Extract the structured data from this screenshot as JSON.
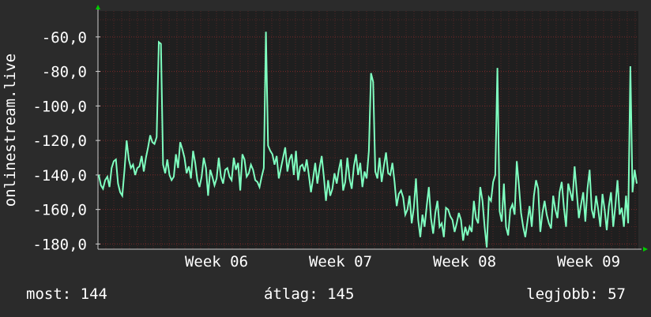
{
  "colors": {
    "background": "#2b2b2b",
    "plot_background": "#1f1f1f",
    "grid": "#7a2a2a",
    "line": "#7fffc0",
    "text": "#ffffff",
    "arrow": "#00cc00"
  },
  "stats": {
    "current": "most: 144",
    "average": "átlag: 145",
    "best": "legjobb: 57"
  },
  "chart_data": {
    "type": "line",
    "title": "",
    "xlabel": "",
    "ylabel": "onlinestream.live",
    "y_ticks": [
      "-60,0",
      "-80,0",
      "-100,0",
      "-120,0",
      "-140,0",
      "-160,0",
      "-180,0"
    ],
    "x_ticks": [
      "Week 06",
      "Week 07",
      "Week 08",
      "Week 09"
    ],
    "ylim": [
      -183,
      -45
    ],
    "grid": true,
    "series": [
      {
        "values": [
          -140,
          -146,
          -148,
          -143,
          -141,
          -147,
          -136,
          -132,
          -131,
          -145,
          -150,
          -152,
          -137,
          -120,
          -131,
          -136,
          -134,
          -140,
          -136,
          -135,
          -129,
          -138,
          -130,
          -124,
          -117,
          -121,
          -122,
          -118,
          -63,
          -64,
          -134,
          -139,
          -131,
          -140,
          -143,
          -141,
          -128,
          -136,
          -121,
          -125,
          -130,
          -139,
          -135,
          -142,
          -126,
          -133,
          -143,
          -147,
          -141,
          -130,
          -136,
          -152,
          -137,
          -141,
          -146,
          -142,
          -130,
          -141,
          -145,
          -137,
          -136,
          -141,
          -143,
          -130,
          -137,
          -133,
          -149,
          -128,
          -131,
          -141,
          -139,
          -134,
          -137,
          -143,
          -144,
          -147,
          -141,
          -136,
          -57,
          -123,
          -126,
          -128,
          -134,
          -129,
          -142,
          -136,
          -130,
          -124,
          -138,
          -131,
          -128,
          -140,
          -126,
          -143,
          -135,
          -134,
          -138,
          -131,
          -140,
          -150,
          -142,
          -133,
          -145,
          -136,
          -129,
          -141,
          -155,
          -143,
          -152,
          -148,
          -139,
          -145,
          -137,
          -131,
          -149,
          -144,
          -130,
          -142,
          -148,
          -135,
          -128,
          -140,
          -133,
          -147,
          -138,
          -142,
          -126,
          -81,
          -86,
          -138,
          -142,
          -130,
          -144,
          -135,
          -127,
          -139,
          -140,
          -133,
          -144,
          -158,
          -151,
          -149,
          -153,
          -163,
          -160,
          -152,
          -168,
          -159,
          -142,
          -166,
          -176,
          -163,
          -170,
          -158,
          -147,
          -165,
          -174,
          -162,
          -155,
          -170,
          -168,
          -176,
          -159,
          -160,
          -164,
          -166,
          -173,
          -168,
          -162,
          -166,
          -178,
          -170,
          -175,
          -170,
          -173,
          -155,
          -165,
          -168,
          -147,
          -155,
          -170,
          -182,
          -153,
          -155,
          -144,
          -140,
          -78,
          -161,
          -167,
          -145,
          -170,
          -175,
          -160,
          -157,
          -163,
          -132,
          -146,
          -162,
          -170,
          -176,
          -167,
          -158,
          -170,
          -152,
          -143,
          -148,
          -173,
          -162,
          -155,
          -163,
          -168,
          -171,
          -152,
          -160,
          -165,
          -150,
          -144,
          -159,
          -170,
          -145,
          -150,
          -155,
          -135,
          -150,
          -165,
          -157,
          -150,
          -167,
          -148,
          -137,
          -160,
          -165,
          -152,
          -160,
          -170,
          -151,
          -160,
          -172,
          -158,
          -150,
          -170,
          -158,
          -143,
          -163,
          -159,
          -170,
          -152,
          -168,
          -77,
          -150,
          -137,
          -145
        ]
      }
    ]
  }
}
